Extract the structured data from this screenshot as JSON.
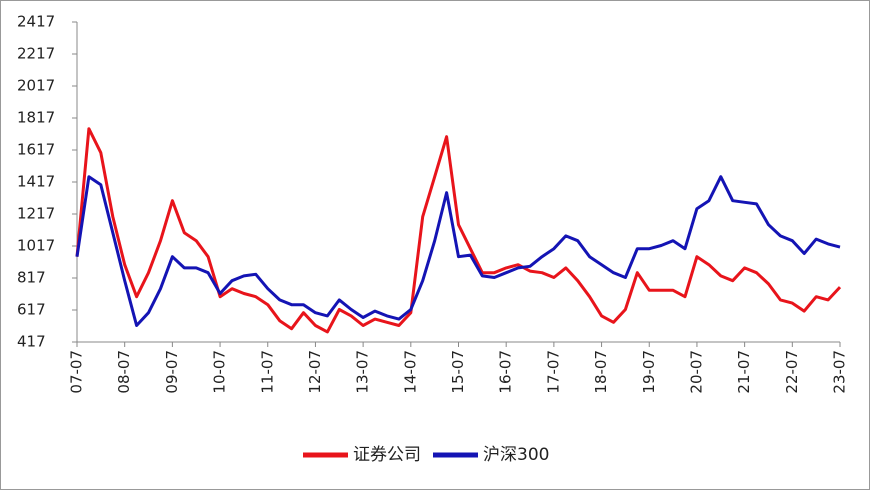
{
  "chart_data": {
    "type": "line",
    "x": [
      2007.5,
      2007.75,
      2008,
      2008.25,
      2008.5,
      2008.75,
      2009,
      2009.25,
      2009.5,
      2009.75,
      2010,
      2010.25,
      2010.5,
      2010.75,
      2011,
      2011.25,
      2011.5,
      2011.75,
      2012,
      2012.25,
      2012.5,
      2012.75,
      2013,
      2013.25,
      2013.5,
      2013.75,
      2014,
      2014.25,
      2014.5,
      2014.75,
      2015,
      2015.25,
      2015.5,
      2015.75,
      2016,
      2016.25,
      2016.5,
      2016.75,
      2017,
      2017.25,
      2017.5,
      2017.75,
      2018,
      2018.25,
      2018.5,
      2018.75,
      2019,
      2019.25,
      2019.5,
      2019.75,
      2020,
      2020.25,
      2020.5,
      2020.75,
      2021,
      2021.25,
      2021.5,
      2021.75,
      2022,
      2022.25,
      2022.5,
      2022.75,
      2023,
      2023.25,
      2023.5
    ],
    "series": [
      {
        "name": "证券公司",
        "color": "#e8141b",
        "values": [
          950,
          1750,
          1600,
          1200,
          900,
          700,
          850,
          1050,
          1300,
          1100,
          1050,
          950,
          700,
          750,
          720,
          700,
          650,
          550,
          500,
          600,
          520,
          480,
          620,
          580,
          520,
          560,
          540,
          520,
          600,
          1200,
          1450,
          1700,
          1150,
          1000,
          850,
          850,
          880,
          900,
          860,
          850,
          820,
          880,
          800,
          700,
          580,
          540,
          620,
          850,
          740,
          740,
          740,
          700,
          950,
          900,
          830,
          800,
          880,
          850,
          780,
          680,
          660,
          610,
          700,
          680,
          760
        ]
      },
      {
        "name": "沪深300",
        "color": "#1414b4",
        "values": [
          950,
          1450,
          1400,
          1100,
          800,
          520,
          600,
          750,
          950,
          880,
          880,
          850,
          720,
          800,
          830,
          840,
          750,
          680,
          650,
          650,
          600,
          580,
          680,
          620,
          570,
          610,
          580,
          560,
          620,
          800,
          1050,
          1350,
          950,
          960,
          830,
          820,
          850,
          880,
          890,
          950,
          1000,
          1080,
          1050,
          950,
          900,
          850,
          820,
          1000,
          1000,
          1020,
          1050,
          1000,
          1250,
          1300,
          1450,
          1300,
          1290,
          1280,
          1150,
          1080,
          1050,
          970,
          1060,
          1030,
          1010
        ]
      }
    ],
    "xlim": [
      2007.5,
      2023.5
    ],
    "xticks": [
      {
        "value": 2007.5,
        "label": "07-07"
      },
      {
        "value": 2008.5,
        "label": "08-07"
      },
      {
        "value": 2009.5,
        "label": "09-07"
      },
      {
        "value": 2010.5,
        "label": "10-07"
      },
      {
        "value": 2011.5,
        "label": "11-07"
      },
      {
        "value": 2012.5,
        "label": "12-07"
      },
      {
        "value": 2013.5,
        "label": "13-07"
      },
      {
        "value": 2014.5,
        "label": "14-07"
      },
      {
        "value": 2015.5,
        "label": "15-07"
      },
      {
        "value": 2016.5,
        "label": "16-07"
      },
      {
        "value": 2017.5,
        "label": "17-07"
      },
      {
        "value": 2018.5,
        "label": "18-07"
      },
      {
        "value": 2019.5,
        "label": "19-07"
      },
      {
        "value": 2020.5,
        "label": "20-07"
      },
      {
        "value": 2021.5,
        "label": "21-07"
      },
      {
        "value": 2022.5,
        "label": "22-07"
      },
      {
        "value": 2023.5,
        "label": "23-07"
      }
    ],
    "ylim": [
      417,
      2417
    ],
    "yticks": [
      417,
      617,
      817,
      1017,
      1217,
      1417,
      1617,
      1817,
      2017,
      2217,
      2417
    ],
    "legend": "bottom"
  }
}
